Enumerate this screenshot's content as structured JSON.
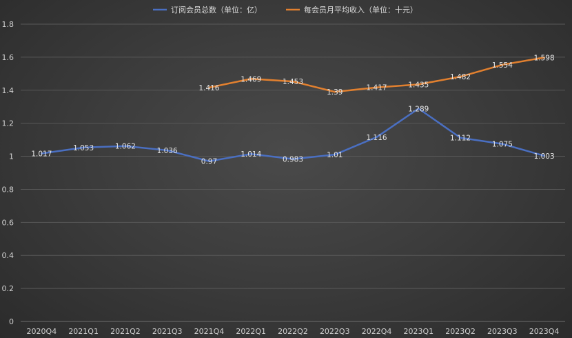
{
  "chart_data": {
    "type": "line",
    "categories": [
      "2020Q4",
      "2021Q1",
      "2021Q2",
      "2021Q3",
      "2021Q4",
      "2022Q1",
      "2022Q2",
      "2022Q3",
      "2022Q4",
      "2023Q1",
      "2023Q2",
      "2023Q3",
      "2023Q4"
    ],
    "series": [
      {
        "name": "订阅会员总数（单位：亿）",
        "color": "#4a6fc2",
        "values": [
          1.017,
          1.053,
          1.062,
          1.036,
          0.97,
          1.014,
          0.983,
          1.01,
          1.116,
          1.289,
          1.112,
          1.075,
          1.003
        ],
        "labels": [
          "1.017",
          "1.053",
          "1.062",
          "1.036",
          "0.97",
          "1.014",
          "0.983",
          "1.01",
          "1.116",
          "1.289",
          "1.112",
          "1.075",
          "1.003"
        ]
      },
      {
        "name": "每会员月平均收入（单位：十元）",
        "color": "#e2802f",
        "values": [
          null,
          null,
          null,
          null,
          1.416,
          1.469,
          1.453,
          1.39,
          1.417,
          1.435,
          1.482,
          1.554,
          1.598
        ],
        "labels": [
          null,
          null,
          null,
          null,
          "1.416",
          "1.469",
          "1.453",
          "1.39",
          "1.417",
          "1.435",
          "1.482",
          "1.554",
          "1.598"
        ]
      }
    ],
    "yticks": [
      "0",
      "0.2",
      "0.4",
      "0.6",
      "0.8",
      "1",
      "1.2",
      "1.4",
      "1.6",
      "1.8"
    ],
    "ylim": [
      0,
      1.8
    ],
    "grid": true,
    "legend_position": "top-center",
    "title": "",
    "xlabel": "",
    "ylabel": ""
  }
}
